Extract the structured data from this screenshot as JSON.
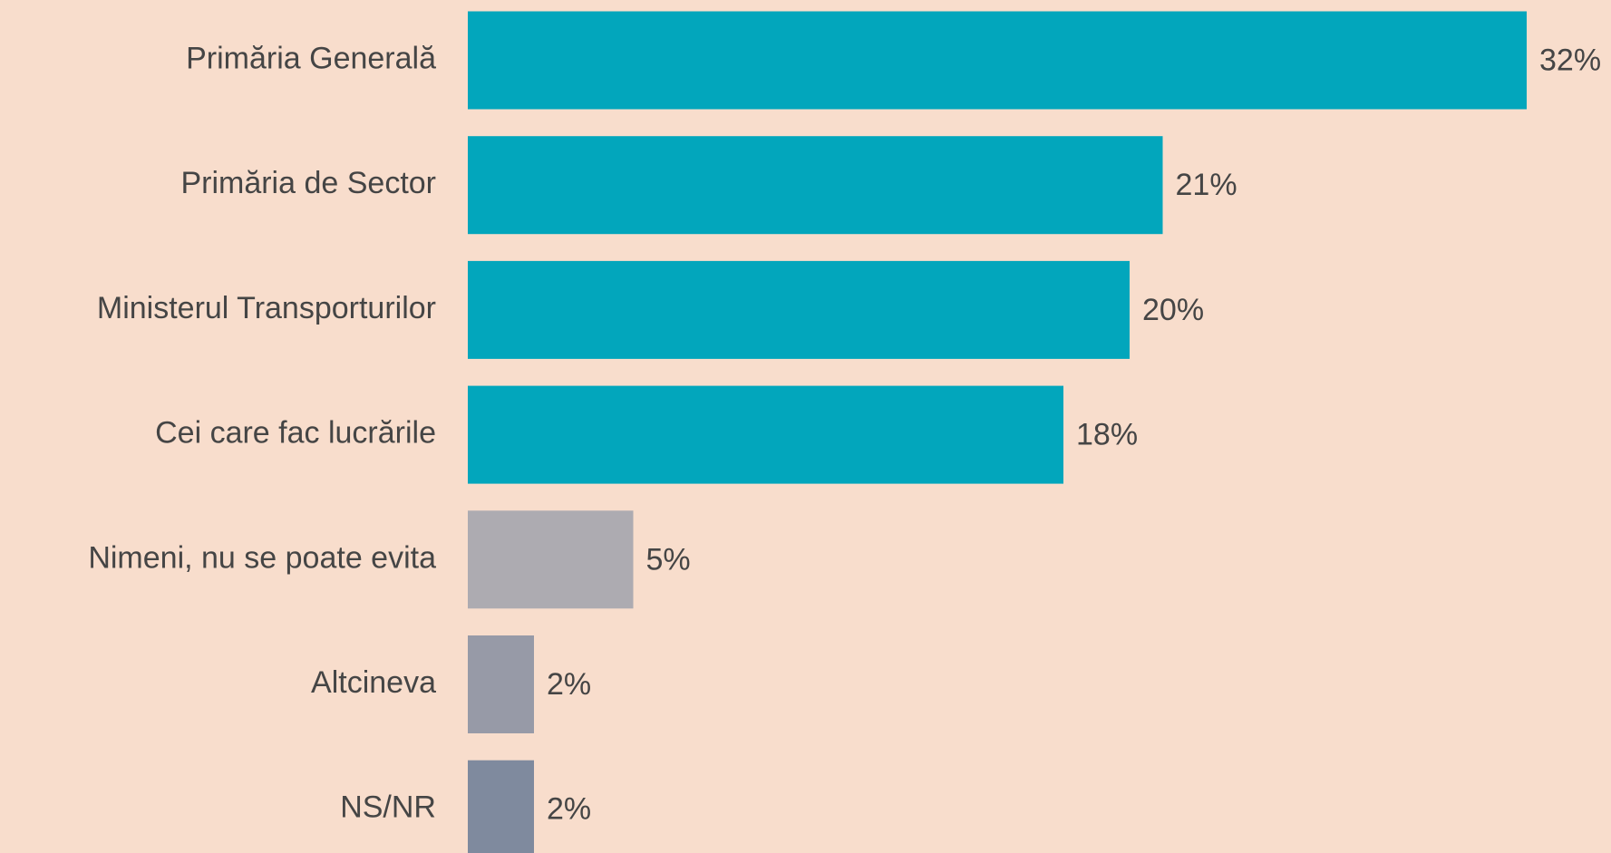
{
  "chart_data": {
    "type": "barh",
    "categories": [
      "Primăria Generală",
      "Primăria de Sector",
      "Ministerul Transporturilor",
      "Cei care fac lucrările",
      "Nimeni, nu se poate evita",
      "Altcineva",
      "NS/NR"
    ],
    "values": [
      32,
      21,
      20,
      18,
      5,
      2,
      2
    ],
    "value_labels": [
      "32%",
      "21%",
      "20%",
      "18%",
      "5%",
      "2%",
      "2%"
    ],
    "colors": [
      "#02a6bc",
      "#02a6bc",
      "#02a6bc",
      "#02a6bc",
      "#adabb1",
      "#979aa7",
      "#7f8a9e"
    ]
  }
}
